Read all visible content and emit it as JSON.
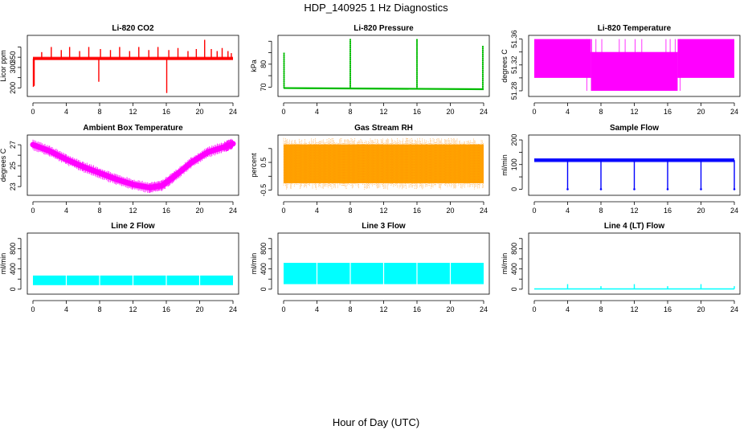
{
  "figure": {
    "title": "HDP_140925  1 Hz Diagnostics",
    "xlabel": "Hour of Day (UTC)"
  },
  "chart_data": [
    {
      "type": "line",
      "title": "Li-820 CO2",
      "ylabel": "Licor ppm",
      "color": "#ff0000",
      "xlim": [
        0,
        24
      ],
      "ylim": [
        170,
        445
      ],
      "xticks": [
        0,
        4,
        8,
        12,
        16,
        20,
        24
      ],
      "yticks": [
        200,
        250,
        300,
        350,
        400
      ],
      "ytick_labels": [
        "200",
        "",
        "300",
        "350",
        ""
      ],
      "baseline": 343,
      "band": [
        336,
        352
      ],
      "spikes": [
        [
          0.05,
          205
        ],
        [
          0.15,
          210
        ],
        [
          1.05,
          375
        ],
        [
          2.2,
          400
        ],
        [
          3.4,
          385
        ],
        [
          4.4,
          400
        ],
        [
          5.6,
          380
        ],
        [
          6.7,
          400
        ],
        [
          7.9,
          230
        ],
        [
          8.1,
          390
        ],
        [
          9.3,
          385
        ],
        [
          10.4,
          400
        ],
        [
          11.6,
          380
        ],
        [
          12.7,
          400
        ],
        [
          13.9,
          385
        ],
        [
          15.0,
          400
        ],
        [
          16.05,
          175
        ],
        [
          16.3,
          385
        ],
        [
          17.4,
          395
        ],
        [
          18.6,
          380
        ],
        [
          19.6,
          390
        ],
        [
          20.6,
          435
        ],
        [
          21.4,
          390
        ],
        [
          22.1,
          380
        ],
        [
          22.7,
          395
        ],
        [
          23.4,
          380
        ],
        [
          23.8,
          370
        ]
      ]
    },
    {
      "type": "line",
      "title": "Li-820 Pressure",
      "ylabel": "kPa",
      "color": "#00bb00",
      "xlim": [
        0,
        24
      ],
      "ylim": [
        67,
        91.5
      ],
      "xticks": [
        0,
        4,
        8,
        12,
        16,
        20,
        24
      ],
      "yticks": [
        70,
        75,
        80,
        85,
        90
      ],
      "ytick_labels": [
        "70",
        "",
        "80",
        "",
        ""
      ],
      "baseline": [
        [
          0,
          69.6
        ],
        [
          24,
          69.1
        ]
      ],
      "spikes": [
        [
          0.05,
          85
        ],
        [
          8.0,
          91
        ],
        [
          16.0,
          91
        ],
        [
          23.9,
          88
        ]
      ]
    },
    {
      "type": "band",
      "title": "Li-820 Temperature",
      "ylabel": "degrees C",
      "color": "#ff00ff",
      "xlim": [
        0,
        24
      ],
      "ylim": [
        51.275,
        51.362
      ],
      "xticks": [
        0,
        4,
        8,
        12,
        16,
        20,
        24
      ],
      "yticks": [
        51.28,
        51.3,
        51.32,
        51.34,
        51.36
      ],
      "ytick_labels": [
        "51.28",
        "",
        "51.32",
        "",
        "51.36"
      ],
      "bands": [
        [
          0,
          6.8,
          51.3,
          51.36
        ],
        [
          6.8,
          17.2,
          51.28,
          51.34
        ],
        [
          17.2,
          24,
          51.3,
          51.36
        ]
      ]
    },
    {
      "type": "line",
      "title": "Ambient Box Temperature",
      "ylabel": "degrees C",
      "color": "#ff00ff",
      "xlim": [
        0,
        24
      ],
      "ylim": [
        22.4,
        27.7
      ],
      "xticks": [
        0,
        4,
        8,
        12,
        16,
        20,
        24
      ],
      "yticks": [
        23,
        24,
        25,
        26,
        27
      ],
      "ytick_labels": [
        "23",
        "",
        "25",
        "",
        "27"
      ],
      "series": [
        [
          0,
          27.0
        ],
        [
          2,
          26.4
        ],
        [
          4,
          25.6
        ],
        [
          6,
          24.9
        ],
        [
          8,
          24.3
        ],
        [
          10,
          23.7
        ],
        [
          12,
          23.2
        ],
        [
          14,
          22.9
        ],
        [
          15.5,
          23.1
        ],
        [
          17,
          24.0
        ],
        [
          19,
          25.3
        ],
        [
          21,
          26.3
        ],
        [
          23,
          26.8
        ],
        [
          24,
          27.1
        ]
      ]
    },
    {
      "type": "band",
      "title": "Gas Stream RH",
      "ylabel": "percent",
      "color": "#ffa500",
      "xlim": [
        0,
        24
      ],
      "ylim": [
        -0.6,
        1.4
      ],
      "xticks": [
        0,
        4,
        8,
        12,
        16,
        20,
        24
      ],
      "yticks": [
        -0.5,
        0,
        0.5,
        1.0
      ],
      "ytick_labels": [
        "-0.5",
        "",
        "0.5",
        ""
      ],
      "bands": [
        [
          0,
          24,
          -0.25,
          1.15
        ]
      ]
    },
    {
      "type": "line",
      "title": "Sample Flow",
      "ylabel": "ml/min",
      "color": "#0000ff",
      "xlim": [
        0,
        24
      ],
      "ylim": [
        -15,
        210
      ],
      "xticks": [
        0,
        4,
        8,
        12,
        16,
        20,
        24
      ],
      "yticks": [
        0,
        50,
        100,
        150,
        200
      ],
      "ytick_labels": [
        "0",
        "",
        "100",
        "",
        "200"
      ],
      "baseline": 118,
      "band": [
        110,
        125
      ],
      "dips": [
        4.0,
        8.0,
        12.0,
        16.0,
        20.0,
        24.0
      ]
    },
    {
      "type": "band",
      "title": "Line 2 Flow",
      "ylabel": "ml/min",
      "color": "#00ffff",
      "xlim": [
        0,
        24
      ],
      "ylim": [
        -50,
        1060
      ],
      "xticks": [
        0,
        4,
        8,
        12,
        16,
        20,
        24
      ],
      "yticks": [
        0,
        200,
        400,
        600,
        800,
        1000
      ],
      "ytick_labels": [
        "0",
        "",
        "400",
        "",
        "800",
        ""
      ],
      "bands": [
        [
          0,
          24,
          80,
          270
        ]
      ],
      "gaps": [
        4.0,
        8.0,
        12.0,
        16.0,
        20.0
      ]
    },
    {
      "type": "band",
      "title": "Line 3 Flow",
      "ylabel": "ml/min",
      "color": "#00ffff",
      "xlim": [
        0,
        24
      ],
      "ylim": [
        -50,
        1060
      ],
      "xticks": [
        0,
        4,
        8,
        12,
        16,
        20,
        24
      ],
      "yticks": [
        0,
        200,
        400,
        600,
        800,
        1000
      ],
      "ytick_labels": [
        "0",
        "",
        "400",
        "",
        "800",
        ""
      ],
      "bands": [
        [
          0,
          24,
          100,
          520
        ]
      ],
      "gaps": [
        4.0,
        8.0,
        12.0,
        16.0,
        20.0
      ]
    },
    {
      "type": "line",
      "title": "Line 4 (LT) Flow",
      "ylabel": "ml/min",
      "color": "#00ffff",
      "xlim": [
        0,
        24
      ],
      "ylim": [
        -50,
        1060
      ],
      "xticks": [
        0,
        4,
        8,
        12,
        16,
        20,
        24
      ],
      "yticks": [
        0,
        200,
        400,
        600,
        800,
        1000
      ],
      "ytick_labels": [
        "0",
        "",
        "400",
        "",
        "800",
        ""
      ],
      "baseline": 5,
      "spikes": [
        [
          4.0,
          100
        ],
        [
          8.0,
          60
        ],
        [
          12.0,
          100
        ],
        [
          16.0,
          60
        ],
        [
          20.0,
          100
        ],
        [
          24.0,
          60
        ]
      ]
    }
  ]
}
